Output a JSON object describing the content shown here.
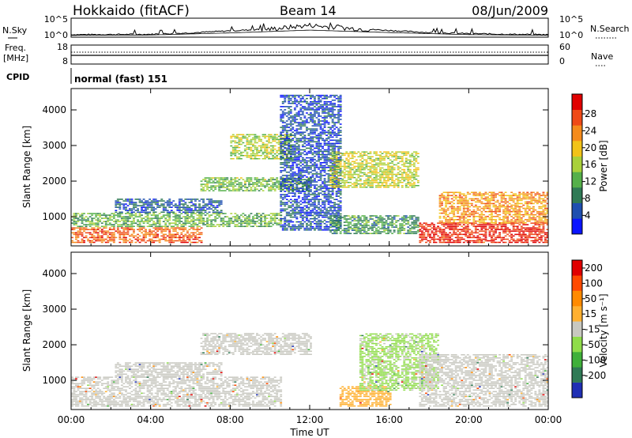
{
  "header": {
    "station": "Hokkaido (fitACF)",
    "beam": "Beam 14",
    "date": "08/Jun/2009"
  },
  "labels": {
    "nsky": "N.Sky",
    "nsearch": "N.Search",
    "freq": "Freq.",
    "mhz": "[MHz]",
    "nave": "Nave",
    "cpid": "CPID",
    "cpid_value": "normal (fast) 151"
  },
  "noise_axis": {
    "left": [
      "10^5",
      "10^0"
    ],
    "right": [
      "10^5",
      "10^0"
    ]
  },
  "freq_axis": {
    "left": [
      "18",
      "8"
    ],
    "right": [
      "60",
      "0"
    ]
  },
  "range_axis": {
    "label": "Slant Range [km]",
    "ticks": [
      "4000",
      "3000",
      "2000",
      "1000"
    ]
  },
  "time_axis": {
    "label": "Time UT",
    "ticks": [
      "00:00",
      "04:00",
      "08:00",
      "12:00",
      "16:00",
      "20:00",
      "00:00"
    ]
  },
  "power_bar": {
    "label": "Power [dB]",
    "ticks": [
      "28",
      "24",
      "20",
      "16",
      "12",
      "8",
      "4"
    ],
    "colors": [
      "#0a14ff",
      "#1e4fb0",
      "#2f7a55",
      "#55b04a",
      "#a9d13a",
      "#f2c319",
      "#f58b1c",
      "#ef4a17",
      "#e00000"
    ]
  },
  "velocity_bar": {
    "label": "Velocity [m s⁻¹]",
    "ticks": [
      "200",
      "100",
      "50",
      "15",
      "-15",
      "-50",
      "-100",
      "-200"
    ],
    "colors": [
      "#1f2fb4",
      "#2f7a55",
      "#3fb03a",
      "#8fdc4a",
      "#c8c8c0",
      "#ffb030",
      "#ff8a00",
      "#ff4a00",
      "#e00000"
    ]
  },
  "chart_data": [
    {
      "type": "line",
      "title": "Hokkaido (fitACF)",
      "panel": "noise",
      "x_range_hours": [
        0,
        24
      ],
      "series": [
        {
          "name": "N.Sky",
          "x": [
            0,
            4,
            6,
            8,
            10,
            11,
            12,
            13,
            14,
            16,
            18,
            20,
            22,
            24
          ],
          "y_log10": [
            0.5,
            0.6,
            1.0,
            1.6,
            2.1,
            2.6,
            3.2,
            2.7,
            2.3,
            1.7,
            1.1,
            0.8,
            0.6,
            0.5
          ]
        },
        {
          "name": "N.Search",
          "x": [
            0,
            4,
            8,
            12,
            16,
            20,
            24
          ],
          "y_log10": [
            0.3,
            0.4,
            1.0,
            1.8,
            1.1,
            0.5,
            0.3
          ]
        }
      ]
    },
    {
      "type": "heatmap",
      "panel": "power",
      "xlabel": "Time UT",
      "ylabel": "Slant Range [km]",
      "x_range_hours": [
        0,
        24
      ],
      "ylim": [
        180,
        4600
      ],
      "value_label": "Power [dB]",
      "value_range": [
        0,
        30
      ],
      "regions": [
        {
          "t0": 0.0,
          "t1": 6.5,
          "r0": 250,
          "r1": 700,
          "value": 24
        },
        {
          "t0": 0.0,
          "t1": 10.5,
          "r0": 700,
          "r1": 1100,
          "value": 12
        },
        {
          "t0": 2.2,
          "t1": 7.5,
          "r0": 1100,
          "r1": 1500,
          "value": 6
        },
        {
          "t0": 6.5,
          "t1": 12.0,
          "r0": 1700,
          "r1": 2100,
          "value": 13
        },
        {
          "t0": 8.0,
          "t1": 11.0,
          "r0": 2600,
          "r1": 3300,
          "value": 15
        },
        {
          "t0": 10.5,
          "t1": 13.5,
          "r0": 600,
          "r1": 4400,
          "value": 5
        },
        {
          "t0": 13.0,
          "t1": 17.5,
          "r0": 500,
          "r1": 1000,
          "value": 10
        },
        {
          "t0": 13.0,
          "t1": 17.5,
          "r0": 1800,
          "r1": 2800,
          "value": 16
        },
        {
          "t0": 17.5,
          "t1": 24.0,
          "r0": 250,
          "r1": 800,
          "value": 27
        },
        {
          "t0": 18.5,
          "t1": 24.0,
          "r0": 800,
          "r1": 1700,
          "value": 21
        }
      ]
    },
    {
      "type": "heatmap",
      "panel": "velocity",
      "xlabel": "Time UT",
      "ylabel": "Slant Range [km]",
      "x_range_hours": [
        0,
        24
      ],
      "ylim": [
        180,
        4600
      ],
      "value_label": "Velocity [m s⁻¹]",
      "value_range": [
        -250,
        250
      ],
      "regions": [
        {
          "t0": 0.0,
          "t1": 10.5,
          "r0": 250,
          "r1": 1100,
          "value": 0
        },
        {
          "t0": 2.2,
          "t1": 7.5,
          "r0": 1100,
          "r1": 1500,
          "value": 5
        },
        {
          "t0": 6.5,
          "t1": 12.0,
          "r0": 1700,
          "r1": 2300,
          "value": 0
        },
        {
          "t0": 13.5,
          "t1": 16.0,
          "r0": 250,
          "r1": 800,
          "value": -60
        },
        {
          "t0": 14.5,
          "t1": 18.5,
          "r0": 700,
          "r1": 2300,
          "value": 40
        },
        {
          "t0": 17.5,
          "t1": 24.0,
          "r0": 250,
          "r1": 1700,
          "value": 0
        }
      ]
    }
  ]
}
